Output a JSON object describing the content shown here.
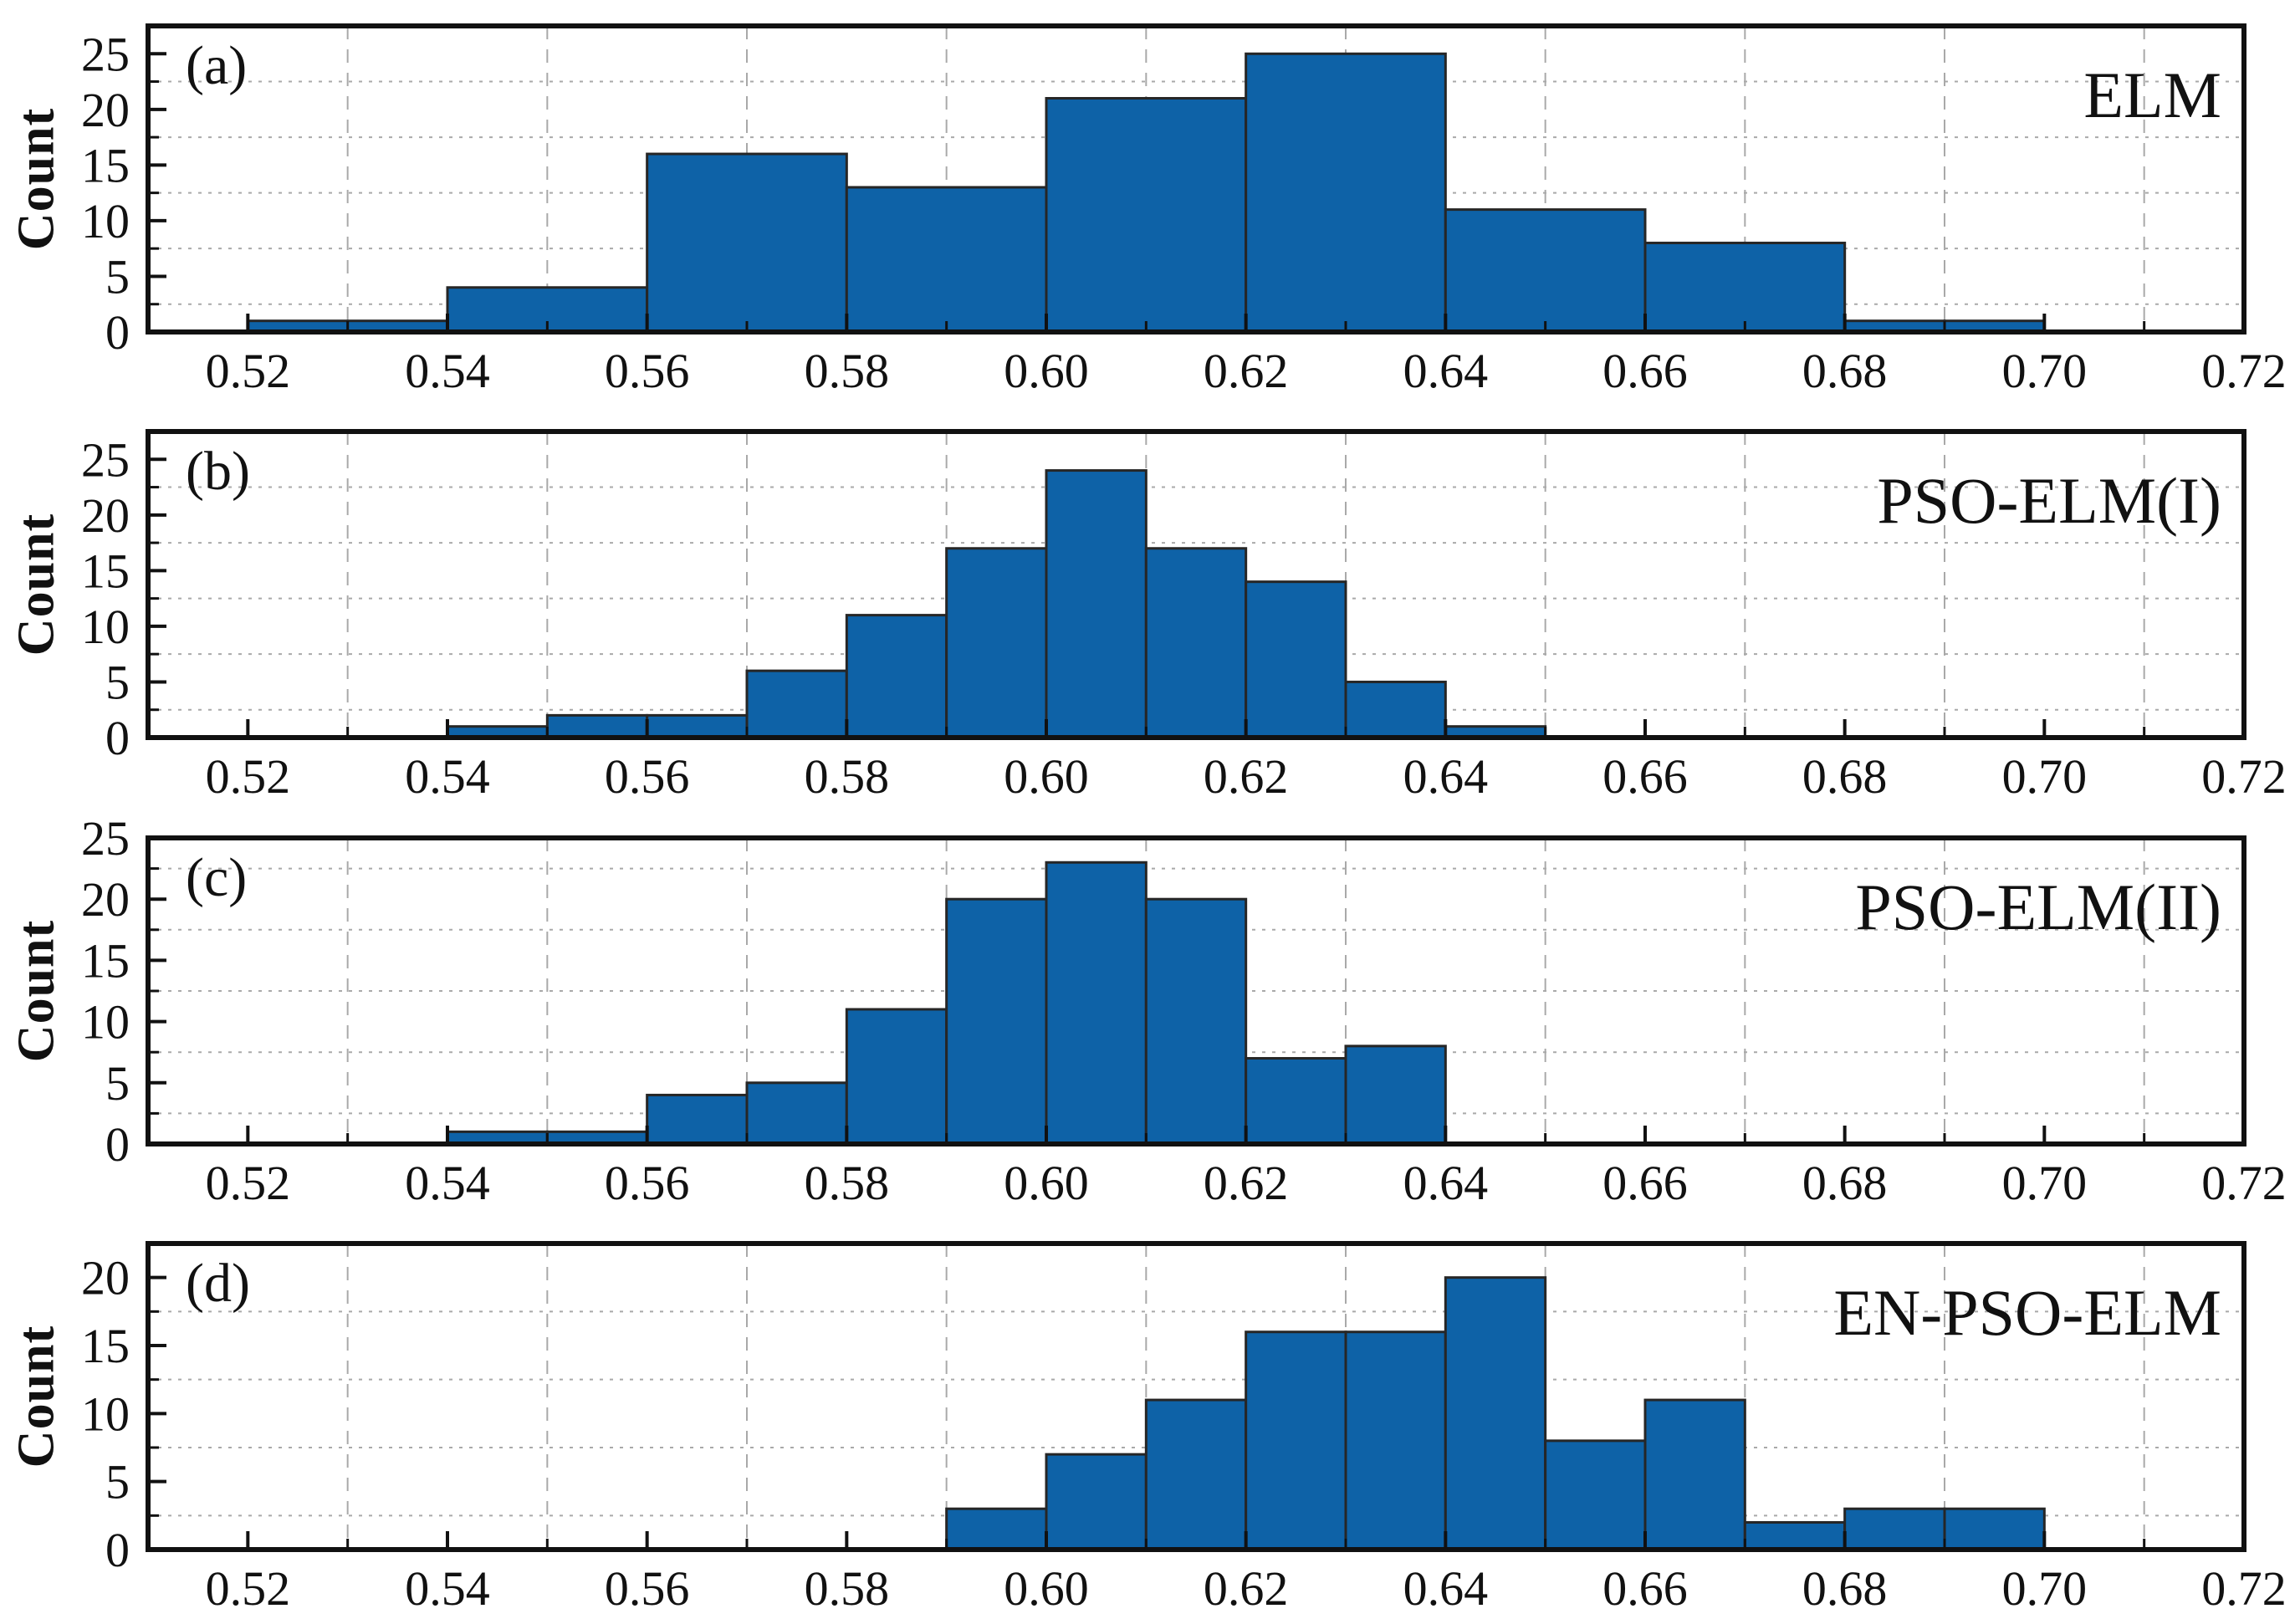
{
  "figure": {
    "background": "#ffffff",
    "bar_fill": "#0E62A7",
    "bar_edge": "#262626",
    "frame_color": "#111111",
    "grid_color": "#a9a9a9",
    "tick_color": "#111111",
    "text_color": "#111111"
  },
  "chart_data": [
    {
      "type": "bar",
      "panel_label": "(a)",
      "title": "ELM",
      "ylabel": "Count",
      "xlabel": "",
      "xlim": [
        0.51,
        0.72
      ],
      "ylim": [
        0,
        27.5
      ],
      "grid": true,
      "yticks": [
        0,
        5,
        10,
        15,
        20,
        25
      ],
      "y_minor_ticks": [
        2.5,
        7.5,
        12.5,
        17.5,
        22.5
      ],
      "x_major_ticks": [
        0.52,
        0.54,
        0.56,
        0.58,
        0.6,
        0.62,
        0.64,
        0.66,
        0.68,
        0.7,
        0.72
      ],
      "x_tick_labels": [
        "0.52",
        "0.54",
        "0.56",
        "0.58",
        "0.60",
        "0.62",
        "0.64",
        "0.66",
        "0.68",
        "0.70",
        "0.72"
      ],
      "x_minor_ticks": [
        0.53,
        0.55,
        0.57,
        0.59,
        0.61,
        0.63,
        0.65,
        0.67,
        0.69,
        0.71
      ],
      "bars": [
        {
          "x0": 0.52,
          "x1": 0.54,
          "count": 1
        },
        {
          "x0": 0.54,
          "x1": 0.56,
          "count": 4
        },
        {
          "x0": 0.56,
          "x1": 0.58,
          "count": 16
        },
        {
          "x0": 0.58,
          "x1": 0.6,
          "count": 13
        },
        {
          "x0": 0.6,
          "x1": 0.62,
          "count": 21
        },
        {
          "x0": 0.62,
          "x1": 0.64,
          "count": 25
        },
        {
          "x0": 0.64,
          "x1": 0.66,
          "count": 11
        },
        {
          "x0": 0.66,
          "x1": 0.68,
          "count": 8
        },
        {
          "x0": 0.68,
          "x1": 0.69,
          "count": 1
        },
        {
          "x0": 0.69,
          "x1": 0.7,
          "count": 1
        }
      ]
    },
    {
      "type": "bar",
      "panel_label": "(b)",
      "title": "PSO-ELM(I)",
      "ylabel": "Count",
      "xlabel": "",
      "xlim": [
        0.51,
        0.72
      ],
      "ylim": [
        0,
        27.5
      ],
      "grid": true,
      "yticks": [
        0,
        5,
        10,
        15,
        20,
        25
      ],
      "y_minor_ticks": [
        2.5,
        7.5,
        12.5,
        17.5,
        22.5
      ],
      "x_major_ticks": [
        0.52,
        0.54,
        0.56,
        0.58,
        0.6,
        0.62,
        0.64,
        0.66,
        0.68,
        0.7,
        0.72
      ],
      "x_tick_labels": [
        "0.52",
        "0.54",
        "0.56",
        "0.58",
        "0.60",
        "0.62",
        "0.64",
        "0.66",
        "0.68",
        "0.70",
        "0.72"
      ],
      "x_minor_ticks": [
        0.53,
        0.55,
        0.57,
        0.59,
        0.61,
        0.63,
        0.65,
        0.67,
        0.69,
        0.71
      ],
      "bars": [
        {
          "x0": 0.54,
          "x1": 0.55,
          "count": 1
        },
        {
          "x0": 0.55,
          "x1": 0.56,
          "count": 2
        },
        {
          "x0": 0.56,
          "x1": 0.57,
          "count": 2
        },
        {
          "x0": 0.57,
          "x1": 0.58,
          "count": 6
        },
        {
          "x0": 0.58,
          "x1": 0.59,
          "count": 11
        },
        {
          "x0": 0.59,
          "x1": 0.6,
          "count": 17
        },
        {
          "x0": 0.6,
          "x1": 0.61,
          "count": 24
        },
        {
          "x0": 0.61,
          "x1": 0.62,
          "count": 17
        },
        {
          "x0": 0.62,
          "x1": 0.63,
          "count": 14
        },
        {
          "x0": 0.63,
          "x1": 0.64,
          "count": 5
        },
        {
          "x0": 0.64,
          "x1": 0.65,
          "count": 1
        }
      ]
    },
    {
      "type": "bar",
      "panel_label": "(c)",
      "title": "PSO-ELM(II)",
      "ylabel": "Count",
      "xlabel": "",
      "xlim": [
        0.51,
        0.72
      ],
      "ylim": [
        0,
        25
      ],
      "grid": true,
      "yticks": [
        0,
        5,
        10,
        15,
        20,
        25
      ],
      "y_minor_ticks": [
        2.5,
        7.5,
        12.5,
        17.5,
        22.5
      ],
      "x_major_ticks": [
        0.52,
        0.54,
        0.56,
        0.58,
        0.6,
        0.62,
        0.64,
        0.66,
        0.68,
        0.7,
        0.72
      ],
      "x_tick_labels": [
        "0.52",
        "0.54",
        "0.56",
        "0.58",
        "0.60",
        "0.62",
        "0.64",
        "0.66",
        "0.68",
        "0.70",
        "0.72"
      ],
      "x_minor_ticks": [
        0.53,
        0.55,
        0.57,
        0.59,
        0.61,
        0.63,
        0.65,
        0.67,
        0.69,
        0.71
      ],
      "bars": [
        {
          "x0": 0.54,
          "x1": 0.55,
          "count": 1
        },
        {
          "x0": 0.55,
          "x1": 0.56,
          "count": 1
        },
        {
          "x0": 0.56,
          "x1": 0.57,
          "count": 4
        },
        {
          "x0": 0.57,
          "x1": 0.58,
          "count": 5
        },
        {
          "x0": 0.58,
          "x1": 0.59,
          "count": 11
        },
        {
          "x0": 0.59,
          "x1": 0.6,
          "count": 20
        },
        {
          "x0": 0.6,
          "x1": 0.61,
          "count": 23
        },
        {
          "x0": 0.61,
          "x1": 0.62,
          "count": 20
        },
        {
          "x0": 0.62,
          "x1": 0.63,
          "count": 7
        },
        {
          "x0": 0.63,
          "x1": 0.64,
          "count": 8
        }
      ]
    },
    {
      "type": "bar",
      "panel_label": "(d)",
      "title": "EN-PSO-ELM",
      "ylabel": "Count",
      "xlabel": "",
      "xlim": [
        0.51,
        0.72
      ],
      "ylim": [
        0,
        22.5
      ],
      "grid": true,
      "yticks": [
        0,
        5,
        10,
        15,
        20
      ],
      "y_minor_ticks": [
        2.5,
        7.5,
        12.5,
        17.5
      ],
      "x_major_ticks": [
        0.52,
        0.54,
        0.56,
        0.58,
        0.6,
        0.62,
        0.64,
        0.66,
        0.68,
        0.7,
        0.72
      ],
      "x_tick_labels": [
        "0.52",
        "0.54",
        "0.56",
        "0.58",
        "0.60",
        "0.62",
        "0.64",
        "0.66",
        "0.68",
        "0.70",
        "0.72"
      ],
      "x_minor_ticks": [
        0.53,
        0.55,
        0.57,
        0.59,
        0.61,
        0.63,
        0.65,
        0.67,
        0.69,
        0.71
      ],
      "bars": [
        {
          "x0": 0.59,
          "x1": 0.6,
          "count": 3
        },
        {
          "x0": 0.6,
          "x1": 0.61,
          "count": 7
        },
        {
          "x0": 0.61,
          "x1": 0.62,
          "count": 11
        },
        {
          "x0": 0.62,
          "x1": 0.63,
          "count": 16
        },
        {
          "x0": 0.63,
          "x1": 0.64,
          "count": 16
        },
        {
          "x0": 0.64,
          "x1": 0.65,
          "count": 20
        },
        {
          "x0": 0.65,
          "x1": 0.66,
          "count": 8
        },
        {
          "x0": 0.66,
          "x1": 0.67,
          "count": 11
        },
        {
          "x0": 0.67,
          "x1": 0.68,
          "count": 2
        },
        {
          "x0": 0.68,
          "x1": 0.69,
          "count": 3
        },
        {
          "x0": 0.69,
          "x1": 0.7,
          "count": 3
        }
      ]
    }
  ]
}
